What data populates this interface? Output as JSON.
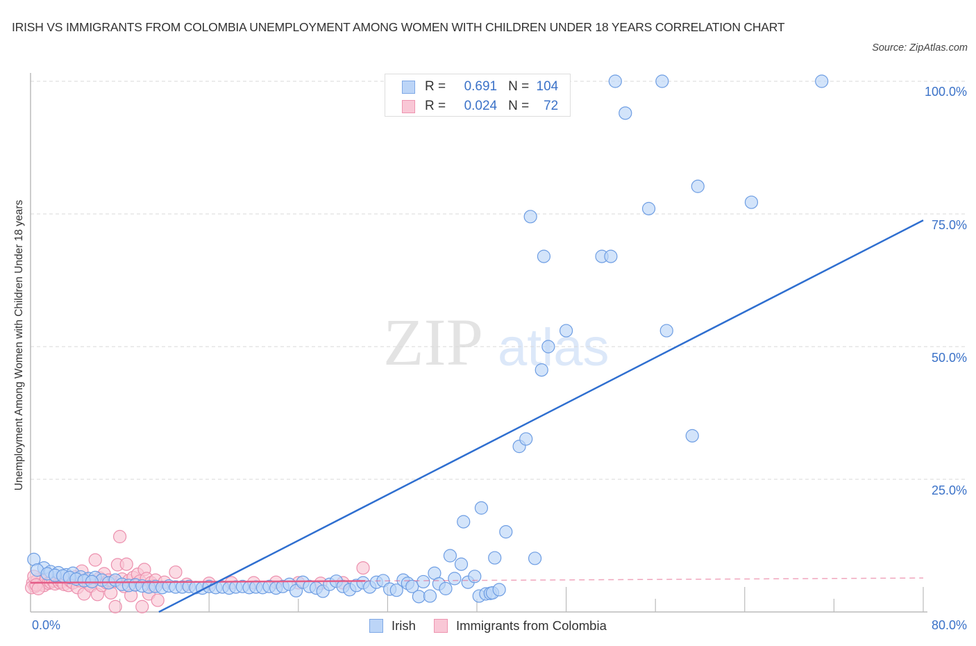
{
  "header": {
    "title": "IRISH VS IMMIGRANTS FROM COLOMBIA UNEMPLOYMENT AMONG WOMEN WITH CHILDREN UNDER 18 YEARS CORRELATION CHART",
    "source": "Source: ZipAtlas.com"
  },
  "watermark": {
    "zip": "ZIP",
    "atlas": "atlas"
  },
  "axes": {
    "ylabel": "Unemployment Among Women with Children Under 18 years",
    "y_ticks": [
      "100.0%",
      "75.0%",
      "50.0%",
      "25.0%"
    ],
    "x_min_label": "0.0%",
    "x_max_label": "80.0%"
  },
  "legend": {
    "series": [
      {
        "r_label": "R =",
        "r_value": "0.691",
        "n_label": "N =",
        "n_value": "104",
        "color": "#bcd5f7"
      },
      {
        "r_label": "R =",
        "r_value": "0.024",
        "n_label": "N =",
        "n_value": "72",
        "color": "#f9c7d6"
      }
    ],
    "bottom": [
      {
        "label": "Irish",
        "color": "#bcd5f7"
      },
      {
        "label": "Immigrants from Colombia",
        "color": "#f9c7d6"
      }
    ]
  },
  "colors": {
    "irish_fill": "#bcd5f7",
    "irish_stroke": "#6d9de3",
    "irish_trend": "#2f6fd0",
    "colombia_fill": "#f9c7d6",
    "colombia_stroke": "#ec8fad",
    "colombia_trend": "#e45c87",
    "axis_label": "#3b72c8"
  },
  "chart_data": {
    "type": "scatter",
    "title": "IRISH VS IMMIGRANTS FROM COLOMBIA UNEMPLOYMENT AMONG WOMEN WITH CHILDREN UNDER 18 YEARS CORRELATION CHART",
    "xlabel": "",
    "ylabel": "Unemployment Among Women with Children Under 18 years",
    "xlim": [
      0,
      80
    ],
    "ylim": [
      0,
      100
    ],
    "x_unit": "%",
    "y_unit": "%",
    "grid": "horizontal dashed at 25, 50, 75, 100",
    "legend_position": "top-center box + bottom",
    "series": [
      {
        "name": "Irish",
        "R": 0.691,
        "N": 104,
        "trend": {
          "x0": 11.5,
          "y0": 0.0,
          "x1": 80.0,
          "y1": 73.8
        },
        "points": [
          [
            0.3,
            9.9
          ],
          [
            1.2,
            8.3
          ],
          [
            1.8,
            7.6
          ],
          [
            2.5,
            7.4
          ],
          [
            3.2,
            7.0
          ],
          [
            3.8,
            7.3
          ],
          [
            4.5,
            6.6
          ],
          [
            5.2,
            6.3
          ],
          [
            5.8,
            6.5
          ],
          [
            6.4,
            6.0
          ],
          [
            7.0,
            5.5
          ],
          [
            7.6,
            6.0
          ],
          [
            8.2,
            5.2
          ],
          [
            8.8,
            5.0
          ],
          [
            9.4,
            5.1
          ],
          [
            10.0,
            4.9
          ],
          [
            10.6,
            4.7
          ],
          [
            11.2,
            4.8
          ],
          [
            11.8,
            4.6
          ],
          [
            12.4,
            4.9
          ],
          [
            13.0,
            4.7
          ],
          [
            13.6,
            4.7
          ],
          [
            14.2,
            4.8
          ],
          [
            14.8,
            4.6
          ],
          [
            15.4,
            4.5
          ],
          [
            16.0,
            4.8
          ],
          [
            16.6,
            4.6
          ],
          [
            17.2,
            4.7
          ],
          [
            17.8,
            4.5
          ],
          [
            18.4,
            4.7
          ],
          [
            19.0,
            4.8
          ],
          [
            19.6,
            4.6
          ],
          [
            20.2,
            4.7
          ],
          [
            20.8,
            4.6
          ],
          [
            21.4,
            4.8
          ],
          [
            22.0,
            4.5
          ],
          [
            22.6,
            4.8
          ],
          [
            23.2,
            5.2
          ],
          [
            23.8,
            4.0
          ],
          [
            24.4,
            5.6
          ],
          [
            25.0,
            4.8
          ],
          [
            25.6,
            4.5
          ],
          [
            26.2,
            3.9
          ],
          [
            26.8,
            5.2
          ],
          [
            27.4,
            5.8
          ],
          [
            28.0,
            4.8
          ],
          [
            28.6,
            4.2
          ],
          [
            29.2,
            5.0
          ],
          [
            29.8,
            5.5
          ],
          [
            30.4,
            4.7
          ],
          [
            31.0,
            5.6
          ],
          [
            31.6,
            5.9
          ],
          [
            32.2,
            4.3
          ],
          [
            32.8,
            4.1
          ],
          [
            33.4,
            6.0
          ],
          [
            33.8,
            5.4
          ],
          [
            34.2,
            4.8
          ],
          [
            34.8,
            2.9
          ],
          [
            35.2,
            5.7
          ],
          [
            35.8,
            3.0
          ],
          [
            36.2,
            7.3
          ],
          [
            36.6,
            5.3
          ],
          [
            37.2,
            4.4
          ],
          [
            37.6,
            10.6
          ],
          [
            38.0,
            6.3
          ],
          [
            38.6,
            9.0
          ],
          [
            39.2,
            5.6
          ],
          [
            39.8,
            6.7
          ],
          [
            40.2,
            3.0
          ],
          [
            40.8,
            3.4
          ],
          [
            41.2,
            3.5
          ],
          [
            41.4,
            3.6
          ],
          [
            42.0,
            4.2
          ],
          [
            38.8,
            17.0
          ],
          [
            40.4,
            19.6
          ],
          [
            42.6,
            15.1
          ],
          [
            41.6,
            10.2
          ],
          [
            45.2,
            10.1
          ],
          [
            43.8,
            31.2
          ],
          [
            44.4,
            32.6
          ],
          [
            45.8,
            45.6
          ],
          [
            46.4,
            50.0
          ],
          [
            48.0,
            53.0
          ],
          [
            51.2,
            67.0
          ],
          [
            52.0,
            67.0
          ],
          [
            46.0,
            67.0
          ],
          [
            44.8,
            74.5
          ],
          [
            55.4,
            76.0
          ],
          [
            59.8,
            80.2
          ],
          [
            64.6,
            77.2
          ],
          [
            53.3,
            94.0
          ],
          [
            52.4,
            100.0
          ],
          [
            56.6,
            100.0
          ],
          [
            70.9,
            100.0
          ],
          [
            57.0,
            53.0
          ],
          [
            59.3,
            33.2
          ],
          [
            0.6,
            7.9
          ],
          [
            1.5,
            7.2
          ],
          [
            2.2,
            6.9
          ],
          [
            2.9,
            6.8
          ],
          [
            3.5,
            6.5
          ],
          [
            4.1,
            6.2
          ],
          [
            4.8,
            5.9
          ],
          [
            5.5,
            5.7
          ]
        ]
      },
      {
        "name": "Immigrants from Colombia",
        "R": 0.024,
        "N": 72,
        "trend": {
          "x0": 0.0,
          "y0": 5.5,
          "x1": 80.0,
          "y1": 6.4,
          "solid_until_x": 30.0
        },
        "points": [
          [
            0.2,
            5.5
          ],
          [
            0.4,
            4.8
          ],
          [
            0.6,
            6.0
          ],
          [
            0.8,
            5.2
          ],
          [
            1.0,
            5.8
          ],
          [
            1.2,
            5.0
          ],
          [
            1.4,
            6.2
          ],
          [
            1.6,
            5.4
          ],
          [
            1.8,
            5.6
          ],
          [
            2.0,
            5.9
          ],
          [
            2.2,
            5.3
          ],
          [
            2.4,
            6.1
          ],
          [
            2.6,
            5.5
          ],
          [
            2.8,
            5.7
          ],
          [
            3.0,
            5.2
          ],
          [
            3.2,
            6.3
          ],
          [
            3.4,
            5.0
          ],
          [
            3.6,
            5.8
          ],
          [
            3.8,
            5.5
          ],
          [
            4.0,
            6.6
          ],
          [
            4.2,
            4.6
          ],
          [
            4.4,
            5.9
          ],
          [
            4.6,
            7.7
          ],
          [
            4.8,
            3.4
          ],
          [
            5.0,
            6.1
          ],
          [
            5.2,
            5.3
          ],
          [
            5.4,
            4.9
          ],
          [
            5.6,
            5.8
          ],
          [
            5.8,
            9.8
          ],
          [
            6.0,
            3.3
          ],
          [
            6.2,
            6.4
          ],
          [
            6.4,
            5.0
          ],
          [
            6.6,
            7.2
          ],
          [
            6.8,
            5.5
          ],
          [
            7.0,
            6.0
          ],
          [
            7.2,
            3.6
          ],
          [
            7.4,
            5.7
          ],
          [
            7.6,
            1.0
          ],
          [
            7.8,
            8.9
          ],
          [
            8.0,
            14.2
          ],
          [
            8.2,
            6.2
          ],
          [
            8.4,
            4.8
          ],
          [
            8.6,
            9.0
          ],
          [
            8.8,
            5.9
          ],
          [
            9.0,
            3.1
          ],
          [
            9.2,
            6.5
          ],
          [
            9.4,
            5.2
          ],
          [
            9.6,
            7.1
          ],
          [
            9.8,
            5.8
          ],
          [
            10.0,
            1.0
          ],
          [
            10.2,
            8.0
          ],
          [
            10.4,
            6.3
          ],
          [
            10.6,
            3.4
          ],
          [
            10.8,
            5.5
          ],
          [
            11.0,
            4.9
          ],
          [
            11.2,
            6.0
          ],
          [
            11.4,
            2.2
          ],
          [
            12.0,
            5.6
          ],
          [
            13.0,
            7.5
          ],
          [
            14.0,
            5.2
          ],
          [
            16.0,
            5.4
          ],
          [
            18.0,
            5.5
          ],
          [
            20.0,
            5.5
          ],
          [
            22.0,
            5.6
          ],
          [
            24.0,
            5.5
          ],
          [
            26.0,
            5.4
          ],
          [
            28.0,
            5.5
          ],
          [
            29.8,
            8.3
          ],
          [
            0.1,
            4.6
          ],
          [
            0.3,
            6.7
          ],
          [
            0.5,
            5.1
          ],
          [
            0.7,
            4.4
          ]
        ]
      }
    ]
  }
}
